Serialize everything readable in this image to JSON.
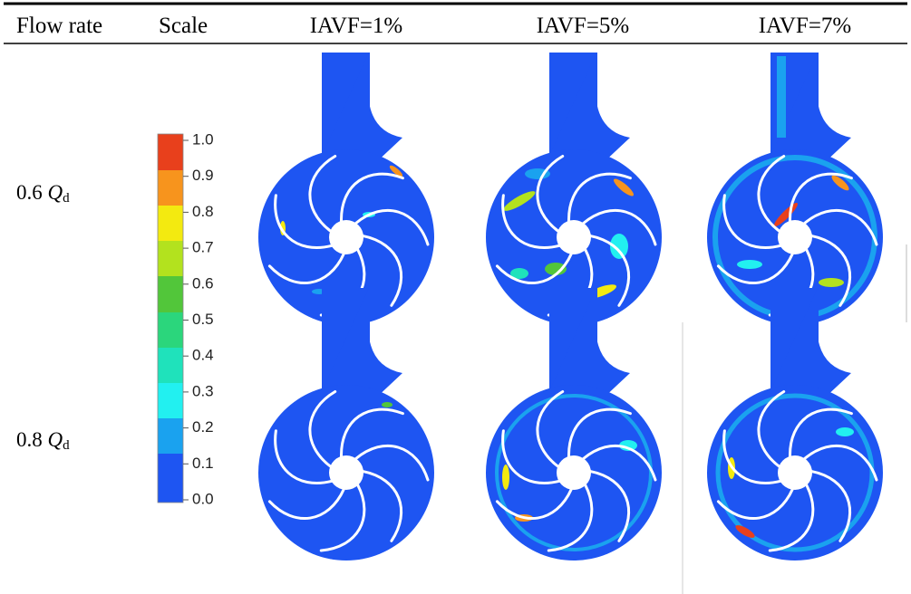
{
  "table": {
    "header": [
      "Flow rate",
      "Scale",
      "IAVF=1%",
      "IAVF=5%",
      "IAVF=7%"
    ],
    "rows": [
      {
        "flow_rate": {
          "value": "0.6",
          "symbol": "Q",
          "subscript": "d"
        }
      },
      {
        "flow_rate": {
          "value": "0.8",
          "symbol": "Q",
          "subscript": "d"
        }
      }
    ]
  },
  "colorbar": {
    "labels": [
      "1.0",
      "0.9",
      "0.8",
      "0.7",
      "0.6",
      "0.5",
      "0.4",
      "0.3",
      "0.2",
      "0.1",
      "0.0"
    ]
  }
}
